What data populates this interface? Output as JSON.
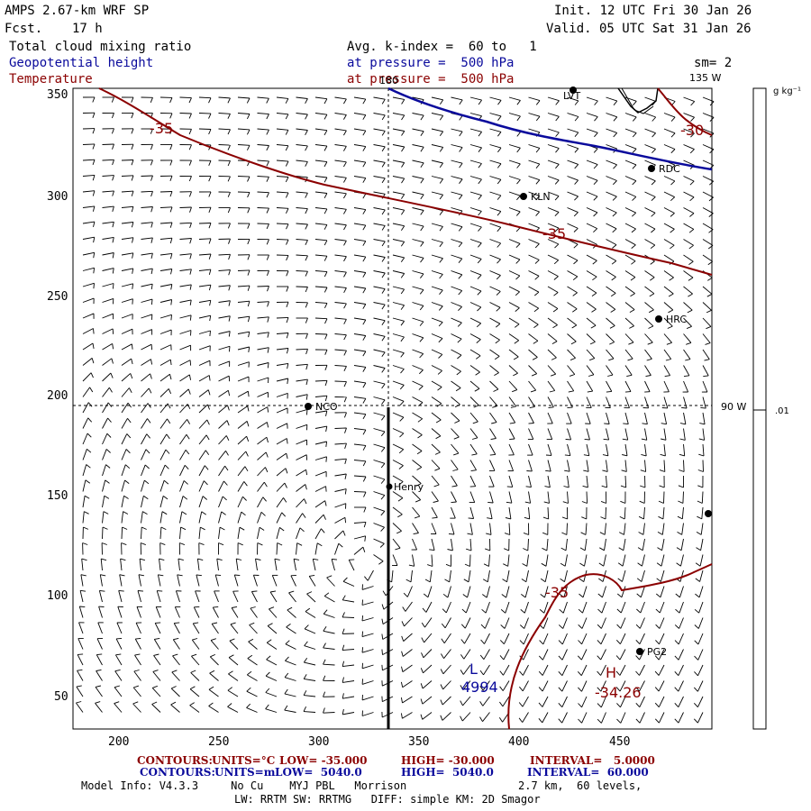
{
  "header": {
    "model": "AMPS 2.67-km WRF SP",
    "fcst_label": "Fcst.",
    "fcst_value": "17 h",
    "init": "Init. 12 UTC Fri 30 Jan 26",
    "valid": "Valid. 05 UTC Sat 31 Jan 26",
    "field1": "Total cloud mixing ratio",
    "field2": "Geopotential height",
    "field3": "Temperature",
    "avg_k": "Avg. k-index =  60 to   1",
    "pressure1": "at pressure =  500 hPa",
    "pressure2": "at pressure =  500 hPa",
    "sm": "sm= 2"
  },
  "map": {
    "y_ticks": [
      "350",
      "300",
      "250",
      "200",
      "150",
      "100",
      "50"
    ],
    "x_ticks": [
      "200",
      "250",
      "300",
      "350",
      "400",
      "450"
    ],
    "meridian_180": "180",
    "meridian_135w": "135 W",
    "meridian_90w": "90 W",
    "stations": [
      {
        "name": "LVT"
      },
      {
        "name": "RDC"
      },
      {
        "name": "KLN"
      },
      {
        "name": "HRC"
      },
      {
        "name": "NCO"
      },
      {
        "name": "Henry"
      },
      {
        "name": "PG2"
      },
      {
        "name": ""
      }
    ],
    "temp_labels": [
      "-35",
      "-35",
      "-30",
      "-35"
    ],
    "high_label": "H",
    "high_value": "-34.26",
    "low_label": "L",
    "low_value": "4994"
  },
  "colorbar": {
    "unit": "g kg⁻¹",
    "value": ".01"
  },
  "footer": {
    "temp": {
      "contours": "CONTOURS:",
      "units": "UNITS=°C",
      "low": "LOW= -35.000",
      "high": "HIGH= -30.000",
      "interval": "INTERVAL=   5.0000"
    },
    "height": {
      "contours": "CONTOURS:",
      "units": "UNITS=m",
      "low": "LOW=  5040.0",
      "high": "HIGH=  5040.0",
      "interval": "INTERVAL=  60.000"
    },
    "model_info": "Model Info: V4.3.3     No Cu    MYJ PBL   Morrison",
    "resolution": "2.7 km,  60 levels,",
    "physics": "LW: RRTM SW: RRTMG   DIFF: simple KM: 2D Smagor"
  },
  "colors": {
    "temperature": "#8b0000",
    "height": "#0a0a9c",
    "text": "#000000"
  }
}
